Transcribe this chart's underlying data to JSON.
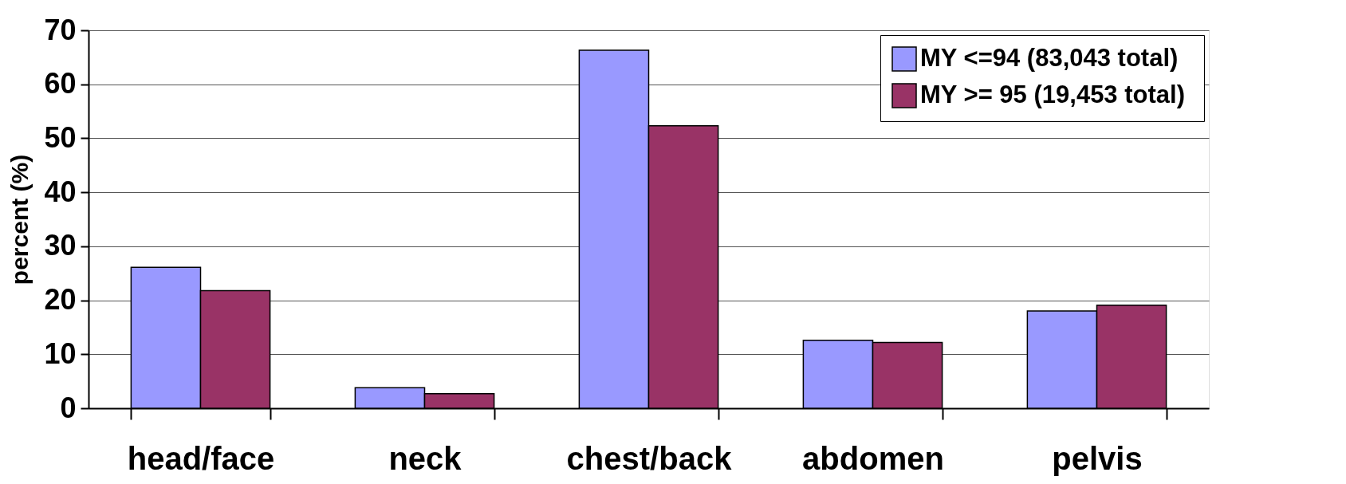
{
  "chart_data": {
    "type": "bar",
    "ylabel": "percent (%)",
    "categories": [
      "head/face",
      "neck",
      "chest/back",
      "abdomen",
      "pelvis"
    ],
    "series": [
      {
        "name": "MY <=94   (83,043 total)",
        "color": "#9999ff",
        "values": [
          26.1,
          3.8,
          66.3,
          12.6,
          18.0
        ]
      },
      {
        "name": "MY >= 95  (19,453 total)",
        "color": "#993366",
        "values": [
          21.8,
          2.7,
          52.3,
          12.2,
          19.1
        ]
      }
    ],
    "ylim": [
      0,
      70
    ],
    "yticks": [
      0,
      10,
      20,
      30,
      40,
      50,
      60,
      70
    ],
    "grid": "y",
    "legend": "top right"
  }
}
